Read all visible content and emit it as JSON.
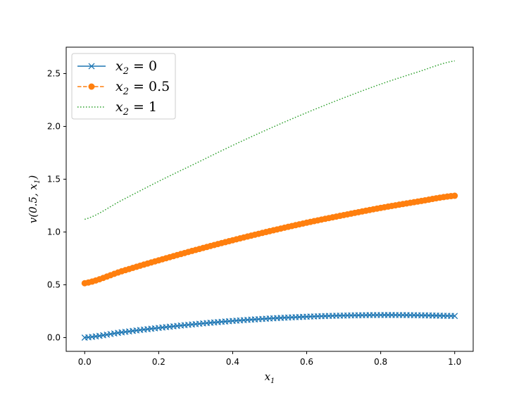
{
  "chart_data": {
    "type": "line",
    "xlabel": {
      "main": "x",
      "sub": "1"
    },
    "ylabel": {
      "main": "v(0.5, x",
      "sub": "1",
      "close": ")"
    },
    "xlim": [
      -0.05,
      1.05
    ],
    "ylim": [
      -0.13,
      2.75
    ],
    "xticks": [
      0.0,
      0.2,
      0.4,
      0.6,
      0.8,
      1.0
    ],
    "xtick_labels": [
      "0.0",
      "0.2",
      "0.4",
      "0.6",
      "0.8",
      "1.0"
    ],
    "yticks": [
      0.0,
      0.5,
      1.0,
      1.5,
      2.0,
      2.5
    ],
    "ytick_labels": [
      "0.0",
      "0.5",
      "1.0",
      "1.5",
      "2.0",
      "2.5"
    ],
    "grid": false,
    "legend_position": "top-left",
    "series": [
      {
        "name": {
          "main": "x",
          "sub": "2",
          "rest": " = 0"
        },
        "color": "#1f77b4",
        "linestyle": "solid",
        "marker": "x",
        "x": [
          0.0,
          0.1,
          0.2,
          0.3,
          0.4,
          0.5,
          0.6,
          0.7,
          0.8,
          0.9,
          1.0
        ],
        "y": [
          0.0,
          0.05,
          0.092,
          0.128,
          0.158,
          0.181,
          0.198,
          0.209,
          0.214,
          0.212,
          0.205
        ]
      },
      {
        "name": {
          "main": "x",
          "sub": "2",
          "rest": " = 0.5"
        },
        "color": "#ff7f0e",
        "linestyle": "dashed",
        "marker": "o",
        "x": [
          0.0,
          0.1,
          0.2,
          0.3,
          0.4,
          0.5,
          0.6,
          0.7,
          0.8,
          0.9,
          1.0
        ],
        "y": [
          0.515,
          0.628,
          0.732,
          0.83,
          0.922,
          1.008,
          1.088,
          1.16,
          1.228,
          1.288,
          1.343
        ]
      },
      {
        "name": {
          "main": "x",
          "sub": "2",
          "rest": " = 1"
        },
        "color": "#2ca02c",
        "linestyle": "dotted",
        "marker": "none",
        "x": [
          0.0,
          0.1,
          0.2,
          0.3,
          0.4,
          0.5,
          0.6,
          0.7,
          0.8,
          0.9,
          1.0
        ],
        "y": [
          1.12,
          1.3,
          1.48,
          1.65,
          1.82,
          1.98,
          2.13,
          2.27,
          2.4,
          2.515,
          2.62
        ]
      }
    ]
  }
}
